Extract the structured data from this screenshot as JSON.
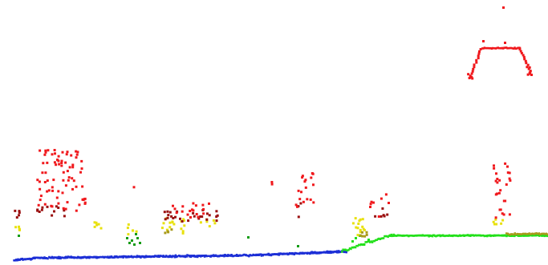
{
  "scene": {
    "description_visible_text": "",
    "point_colors": {
      "ground": "#1c2fd6",
      "low_vegetation": "#22e01a",
      "dark_green": "#149c14",
      "mid_vegetation": "#e8e10e",
      "olive": "#a89a1a",
      "high_vegetation": "#f0181c",
      "dark_red": "#9a1010",
      "brown": "#8a7a20"
    }
  }
}
